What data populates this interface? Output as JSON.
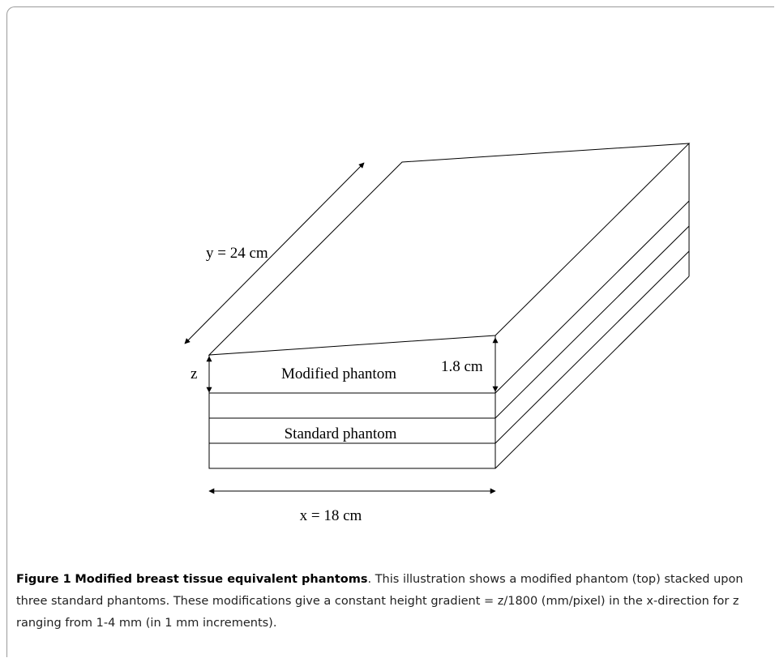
{
  "figure": {
    "labels": {
      "y": "y = 24 cm",
      "z": "z",
      "height": "1.8 cm",
      "modified": "Modified phantom",
      "standard": "Standard phantom",
      "x": "x = 18 cm"
    },
    "caption": {
      "label": "Figure 1",
      "title": "Modified breast tissue equivalent phantoms",
      "text": ". This illustration shows a modified phantom (top) stacked upon three standard phantoms. These modifications give a constant height gradient = z/1800 (mm/pixel) in the x-direction for z ranging from 1-4 mm (in 1 mm increments)."
    }
  }
}
